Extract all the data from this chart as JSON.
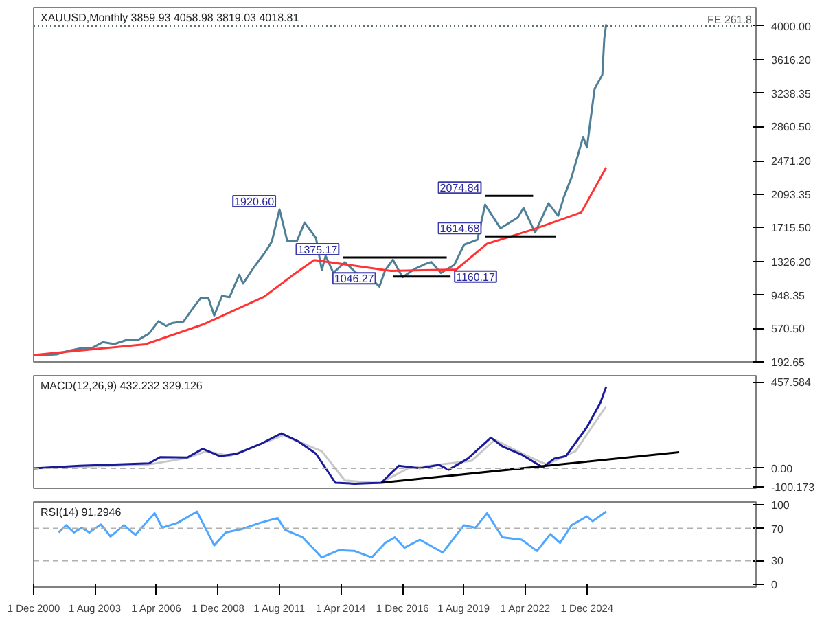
{
  "chart_data": [
    {
      "type": "line",
      "title": "XAUUSD,Monthly 3859.93 4058.98 3819.03 4018.81",
      "tick_labels": "y",
      "xlim": [
        "2000-12",
        "2032-04"
      ],
      "ylim": [
        192.65,
        4210
      ],
      "yticks": [
        {
          "value": 192.65,
          "label": "192.65"
        },
        {
          "value": 570.5,
          "label": "570.50"
        },
        {
          "value": 948.35,
          "label": "948.35"
        },
        {
          "value": 1326.2,
          "label": "1326.20"
        },
        {
          "value": 1715.5,
          "label": "1715.50"
        },
        {
          "value": 2093.35,
          "label": "2093.35"
        },
        {
          "value": 2471.2,
          "label": "2471.20"
        },
        {
          "value": 2860.5,
          "label": "2860.50"
        },
        {
          "value": 3238.35,
          "label": "3238.35"
        },
        {
          "value": 3616.2,
          "label": "3616.20"
        },
        {
          "value": 4000,
          "label": "4000.00"
        }
      ],
      "series": [
        {
          "color": "#4e7f96",
          "x": [
            "2000-12",
            "2001-06",
            "2001-12",
            "2002-06",
            "2002-12",
            "2003-06",
            "2003-12",
            "2004-06",
            "2004-12",
            "2005-06",
            "2005-12",
            "2006-05",
            "2006-09",
            "2006-12",
            "2007-06",
            "2007-12",
            "2008-03",
            "2008-07",
            "2008-10",
            "2009-02",
            "2009-06",
            "2009-11",
            "2010-01",
            "2010-06",
            "2010-12",
            "2011-04",
            "2011-08",
            "2011-12",
            "2012-05",
            "2012-09",
            "2013-03",
            "2013-06",
            "2013-08",
            "2013-12",
            "2014-06",
            "2014-12",
            "2015-06",
            "2015-12",
            "2016-03",
            "2016-07",
            "2016-12",
            "2017-06",
            "2017-12",
            "2018-03",
            "2018-08",
            "2019-03",
            "2019-08",
            "2020-03",
            "2020-07",
            "2021-03",
            "2021-12",
            "2022-03",
            "2022-09",
            "2023-04",
            "2023-09",
            "2023-12",
            "2024-04",
            "2024-10",
            "2024-12",
            "2025-03",
            "2025-04",
            "2025-08",
            "2025-09",
            "2025-10"
          ],
          "values": [
            272,
            270,
            278,
            318,
            345,
            346,
            416,
            395,
            438,
            437,
            513,
            653,
            600,
            632,
            650,
            834,
            917,
            914,
            718,
            940,
            927,
            1180,
            1081,
            1244,
            1421,
            1556,
            1920.6,
            1565,
            1560,
            1772,
            1596,
            1234,
            1395,
            1202,
            1322,
            1200,
            1172,
            1046.27,
            1232,
            1350,
            1152,
            1242,
            1303,
            1325,
            1201,
            1292,
            1520,
            1577,
            1975,
            1707,
            1829,
            1937,
            1660,
            1990,
            1848,
            2062,
            2286,
            2743,
            2624,
            3124,
            3289,
            3448,
            3859,
            4018.81
          ]
        },
        {
          "color": "#ff3333",
          "x": [
            "2000-12",
            "2002-08",
            "2005-10",
            "2008-05",
            "2010-12",
            "2012-04",
            "2013-02",
            "2016-06",
            "2019-04",
            "2020-08",
            "2022-07",
            "2024-09",
            "2025-10"
          ],
          "values": [
            270,
            314,
            391,
            623,
            931,
            1193,
            1347,
            1224,
            1240,
            1532,
            1687,
            1887,
            2396
          ]
        },
        {
          "color": "#000000",
          "x": [
            "2014-05",
            "2018-11"
          ],
          "values": [
            1375.17,
            1375.17
          ]
        },
        {
          "color": "#000000",
          "x": [
            "2016-07",
            "2019-01"
          ],
          "values": [
            1160.17,
            1160.17
          ]
        },
        {
          "color": "#000000",
          "x": [
            "2020-07",
            "2022-08"
          ],
          "values": [
            2074.84,
            2074.84
          ]
        },
        {
          "color": "#000000",
          "x": [
            "2020-07",
            "2023-08"
          ],
          "values": [
            1614.68,
            1614.68
          ]
        }
      ],
      "ref_lines": [
        {
          "axis": "y",
          "value": 4000,
          "label": "FE 261.8",
          "color": "#607070",
          "line_style": "dotted"
        }
      ],
      "annotations": [
        {
          "text": "1920.60",
          "x": "2011-08",
          "y": 1920.6
        },
        {
          "text": "1375.17",
          "x": "2014-05",
          "y": 1375.17
        },
        {
          "text": "1046.27",
          "x": "2015-12",
          "y": 1046.27
        },
        {
          "text": "1160.17",
          "x": "2019-01",
          "y": 1160.17
        },
        {
          "text": "2074.84",
          "x": "2020-07",
          "y": 2074.84
        },
        {
          "text": "1614.68",
          "x": "2020-07",
          "y": 1614.68
        }
      ]
    },
    {
      "type": "line",
      "title": "MACD(12,26,9) 432.232 329.126",
      "tick_labels": "y",
      "xlim": [
        "2000-12",
        "2032-04"
      ],
      "ylim": [
        -106,
        491
      ],
      "yticks": [
        {
          "value": 457.584,
          "label": "457.584"
        },
        {
          "value": 0,
          "label": "0.00"
        },
        -100.173
      ],
      "series": [
        {
          "color": "#c8c8c8",
          "x": [
            "2000-12",
            "2005-12",
            "2007-08",
            "2008-06",
            "2009-06",
            "2011-10",
            "2013-06",
            "2014-06",
            "2015-12",
            "2017-03",
            "2019-12",
            "2020-12",
            "2022-06",
            "2023-03",
            "2024-06",
            "2025-10"
          ],
          "values": [
            0,
            20,
            55,
            90,
            65,
            175,
            90,
            -65,
            -80,
            0,
            40,
            150,
            60,
            20,
            90,
            329
          ]
        },
        {
          "color": "#1a1a9c",
          "x": [
            "2000-12",
            "2002-12",
            "2005-12",
            "2006-06",
            "2007-08",
            "2008-04",
            "2009-01",
            "2009-10",
            "2010-10",
            "2011-09",
            "2012-06",
            "2013-03",
            "2014-01",
            "2014-11",
            "2016-01",
            "2016-10",
            "2017-09",
            "2018-07",
            "2018-12",
            "2019-10",
            "2020-10",
            "2021-04",
            "2022-02",
            "2023-01",
            "2023-07",
            "2024-01",
            "2024-12",
            "2025-07",
            "2025-10"
          ],
          "values": [
            0,
            13,
            26,
            59,
            57,
            103,
            64,
            77,
            128,
            185,
            141,
            77,
            -77,
            -82,
            -77,
            13,
            0,
            18,
            -8,
            51,
            162,
            116,
            72,
            5,
            51,
            64,
            218,
            347,
            432
          ]
        },
        {
          "color": "#000000",
          "x": [
            "2016-01",
            "2028-12"
          ],
          "values": [
            -77,
            85
          ]
        }
      ],
      "ref_lines": [
        {
          "axis": "y",
          "value": 0,
          "color": "#b0b0b0",
          "line_style": "dashed"
        }
      ]
    },
    {
      "type": "line",
      "title": "RSI(14) 91.2946",
      "xlim": [
        "2000-12",
        "2032-04"
      ],
      "ylim": [
        -3,
        103
      ],
      "yticks": [
        0,
        30,
        70,
        100
      ],
      "xticks": [
        {
          "value": "2000-12",
          "label": "1 Dec 2000"
        },
        {
          "value": "2003-08",
          "label": "1 Aug 2003"
        },
        {
          "value": "2006-04",
          "label": "1 Apr 2006"
        },
        {
          "value": "2008-12",
          "label": "1 Dec 2008"
        },
        {
          "value": "2011-08",
          "label": "1 Aug 2011"
        },
        {
          "value": "2014-04",
          "label": "1 Apr 2014"
        },
        {
          "value": "2016-12",
          "label": "1 Dec 2016"
        },
        {
          "value": "2019-08",
          "label": "1 Aug 2019"
        },
        {
          "value": "2022-04",
          "label": "1 Apr 2022"
        },
        {
          "value": "2024-12",
          "label": "1 Dec 2024"
        }
      ],
      "series": [
        {
          "color": "#4da6ff",
          "x": [
            "2002-01",
            "2002-05",
            "2002-09",
            "2003-01",
            "2003-05",
            "2003-11",
            "2004-04",
            "2004-11",
            "2005-05",
            "2006-03",
            "2006-07",
            "2007-03",
            "2008-01",
            "2008-10",
            "2009-04",
            "2009-12",
            "2010-10",
            "2011-07",
            "2011-11",
            "2012-08",
            "2013-06",
            "2014-03",
            "2014-11",
            "2015-08",
            "2016-03",
            "2016-08",
            "2017-01",
            "2017-09",
            "2018-09",
            "2019-08",
            "2020-02",
            "2020-08",
            "2021-04",
            "2022-02",
            "2022-10",
            "2023-05",
            "2023-10",
            "2024-04",
            "2024-12",
            "2025-03",
            "2025-10"
          ],
          "values": [
            65,
            74,
            65,
            71,
            65,
            75,
            60,
            74,
            62,
            89,
            71,
            77,
            91,
            49,
            65,
            69,
            77,
            83,
            68,
            59,
            34,
            43,
            42,
            34,
            52,
            59,
            46,
            56,
            40,
            74,
            71,
            89,
            59,
            56,
            42,
            63,
            52,
            74,
            85,
            79,
            91
          ]
        }
      ],
      "ref_lines": [
        {
          "axis": "y",
          "value": 70,
          "color": "#b0b0b0",
          "line_style": "dashed"
        },
        {
          "axis": "y",
          "value": 30,
          "color": "#b0b0b0",
          "line_style": "dashed"
        }
      ]
    }
  ]
}
